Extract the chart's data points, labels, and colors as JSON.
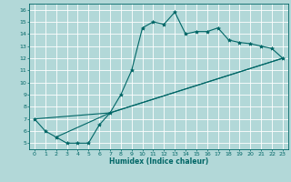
{
  "title": "",
  "xlabel": "Humidex (Indice chaleur)",
  "ylabel": "",
  "bg_color": "#b2d8d8",
  "grid_color": "#ffffff",
  "line_color": "#006666",
  "marker_color": "#006666",
  "xlim": [
    -0.5,
    23.5
  ],
  "ylim": [
    4.5,
    16.5
  ],
  "xticks": [
    0,
    1,
    2,
    3,
    4,
    5,
    6,
    7,
    8,
    9,
    10,
    11,
    12,
    13,
    14,
    15,
    16,
    17,
    18,
    19,
    20,
    21,
    22,
    23
  ],
  "yticks": [
    5,
    6,
    7,
    8,
    9,
    10,
    11,
    12,
    13,
    14,
    15,
    16
  ],
  "series1_x": [
    0,
    1,
    2,
    3,
    4,
    5,
    6,
    7,
    8,
    9,
    10,
    11,
    12,
    13,
    14,
    15,
    16,
    17,
    18,
    19,
    20,
    21,
    22,
    23
  ],
  "series1_y": [
    7,
    6,
    5.5,
    5,
    5,
    5,
    6.5,
    7.5,
    9,
    11,
    14.5,
    15,
    14.8,
    15.8,
    14,
    14.2,
    14.2,
    14.5,
    13.5,
    13.3,
    13.2,
    13,
    12.8,
    12
  ],
  "series2_x": [
    0,
    7,
    23
  ],
  "series2_y": [
    7,
    7.5,
    12
  ],
  "series3_x": [
    2,
    7,
    23
  ],
  "series3_y": [
    5.5,
    7.5,
    12
  ]
}
